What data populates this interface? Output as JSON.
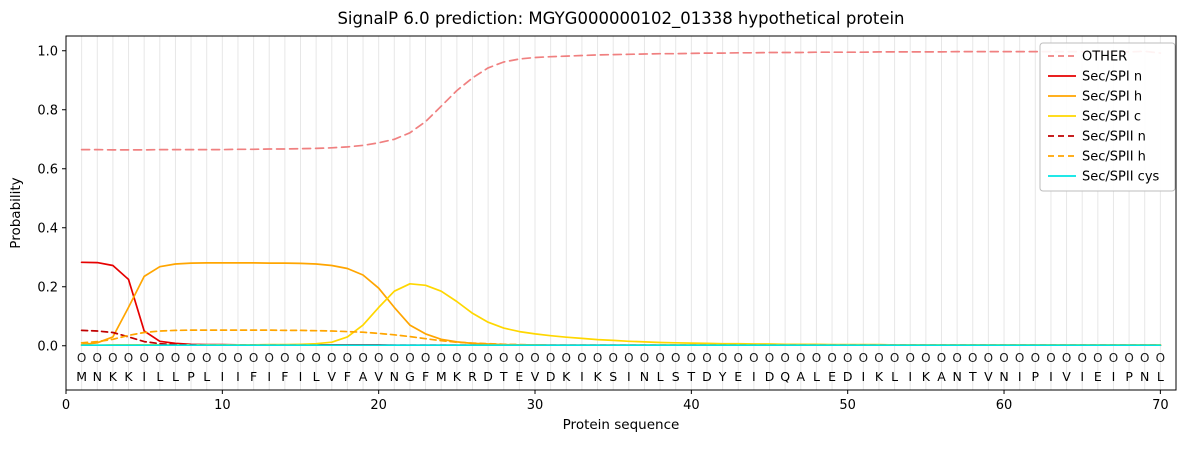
{
  "figure": {
    "title": "SignalP 6.0 prediction: MGYG000000102_01338 hypothetical protein"
  },
  "chart_data": {
    "type": "line",
    "title": "SignalP 6.0 prediction: MGYG000000102_01338 hypothetical protein",
    "xlabel": "Protein sequence",
    "ylabel": "Probability",
    "xlim": [
      0,
      71
    ],
    "ylim": [
      -0.15,
      1.05
    ],
    "xticks": [
      0,
      10,
      20,
      30,
      40,
      50,
      60,
      70
    ],
    "yticks": [
      0.0,
      0.2,
      0.4,
      0.6,
      0.8,
      1.0
    ],
    "grid": "vertical-per-residue",
    "legend_position": "upper-right",
    "sequence": "MNKKILLPLIIFIFILVFAVNGFMKRDTEVDKIKSINLSTDYEIDQALEDIKLIKANTVNIPIVIEIPNL",
    "predicted_labels": "OOOOOOOOOOOOOOOOOOOOOOOOOOOOOOOOOOOOOOOOOOOOOOOOOOOOOOOOOOOOOOOOOOOOOO",
    "series": [
      {
        "name": "OTHER",
        "color": "#f08080",
        "dash": "8 5",
        "values": [
          0.665,
          0.665,
          0.664,
          0.664,
          0.664,
          0.665,
          0.665,
          0.665,
          0.665,
          0.665,
          0.666,
          0.666,
          0.667,
          0.667,
          0.668,
          0.669,
          0.671,
          0.674,
          0.679,
          0.688,
          0.7,
          0.722,
          0.76,
          0.812,
          0.865,
          0.908,
          0.942,
          0.962,
          0.972,
          0.977,
          0.98,
          0.982,
          0.984,
          0.986,
          0.987,
          0.988,
          0.989,
          0.99,
          0.99,
          0.991,
          0.992,
          0.992,
          0.993,
          0.993,
          0.994,
          0.994,
          0.994,
          0.995,
          0.995,
          0.995,
          0.995,
          0.996,
          0.996,
          0.996,
          0.996,
          0.996,
          0.997,
          0.997,
          0.997,
          0.997,
          0.997,
          0.997,
          0.997,
          0.997,
          0.997,
          0.997,
          0.997,
          0.996,
          0.998,
          0.992
        ]
      },
      {
        "name": "Sec/SPI n",
        "color": "#e60000",
        "dash": "",
        "values": [
          0.283,
          0.282,
          0.272,
          0.225,
          0.05,
          0.015,
          0.008,
          0.005,
          0.004,
          0.004,
          0.003,
          0.003,
          0.003,
          0.003,
          0.003,
          0.003,
          0.003,
          0.003,
          0.003,
          0.003,
          0.002,
          0.002,
          0.002,
          0.002,
          0.002,
          0.002,
          0.002,
          0.002,
          0.002,
          0.002,
          0.002,
          0.002,
          0.002,
          0.002,
          0.002,
          0.002,
          0.002,
          0.002,
          0.002,
          0.002,
          0.002,
          0.002,
          0.002,
          0.002,
          0.002,
          0.002,
          0.002,
          0.002,
          0.002,
          0.002,
          0.002,
          0.002,
          0.002,
          0.002,
          0.002,
          0.002,
          0.002,
          0.002,
          0.002,
          0.002,
          0.002,
          0.002,
          0.002,
          0.002,
          0.002,
          0.002,
          0.002,
          0.002,
          0.002,
          0.002
        ]
      },
      {
        "name": "Sec/SPI h",
        "color": "#ffa500",
        "dash": "",
        "values": [
          0.004,
          0.01,
          0.03,
          0.13,
          0.235,
          0.268,
          0.277,
          0.28,
          0.281,
          0.281,
          0.281,
          0.281,
          0.28,
          0.28,
          0.279,
          0.277,
          0.272,
          0.262,
          0.24,
          0.195,
          0.13,
          0.07,
          0.04,
          0.022,
          0.013,
          0.008,
          0.006,
          0.004,
          0.003,
          0.003,
          0.002,
          0.002,
          0.002,
          0.002,
          0.002,
          0.002,
          0.002,
          0.002,
          0.002,
          0.002,
          0.002,
          0.002,
          0.002,
          0.002,
          0.002,
          0.002,
          0.002,
          0.002,
          0.002,
          0.002,
          0.002,
          0.002,
          0.002,
          0.002,
          0.002,
          0.002,
          0.002,
          0.002,
          0.002,
          0.002,
          0.002,
          0.002,
          0.002,
          0.002,
          0.002,
          0.002,
          0.002,
          0.002,
          0.002,
          0.002
        ]
      },
      {
        "name": "Sec/SPI c",
        "color": "#ffd700",
        "dash": "",
        "values": [
          0.002,
          0.002,
          0.003,
          0.003,
          0.003,
          0.003,
          0.003,
          0.003,
          0.003,
          0.003,
          0.003,
          0.003,
          0.004,
          0.004,
          0.005,
          0.007,
          0.012,
          0.03,
          0.07,
          0.13,
          0.185,
          0.21,
          0.205,
          0.185,
          0.15,
          0.11,
          0.08,
          0.06,
          0.048,
          0.04,
          0.034,
          0.029,
          0.025,
          0.021,
          0.018,
          0.015,
          0.013,
          0.011,
          0.01,
          0.009,
          0.008,
          0.007,
          0.007,
          0.006,
          0.006,
          0.005,
          0.005,
          0.005,
          0.004,
          0.004,
          0.004,
          0.004,
          0.003,
          0.003,
          0.003,
          0.003,
          0.003,
          0.003,
          0.003,
          0.003,
          0.003,
          0.003,
          0.003,
          0.003,
          0.003,
          0.003,
          0.003,
          0.003,
          0.003,
          0.003
        ]
      },
      {
        "name": "Sec/SPII n",
        "color": "#c00000",
        "dash": "6 4",
        "values": [
          0.052,
          0.05,
          0.045,
          0.03,
          0.014,
          0.007,
          0.004,
          0.003,
          0.002,
          0.002,
          0.002,
          0.002,
          0.002,
          0.002,
          0.002,
          0.002,
          0.002,
          0.002,
          0.002,
          0.002,
          0.002,
          0.002,
          0.002,
          0.002,
          0.002,
          0.002,
          0.002,
          0.002,
          0.002,
          0.002,
          0.002,
          0.002,
          0.002,
          0.002,
          0.002,
          0.002,
          0.002,
          0.002,
          0.002,
          0.002,
          0.002,
          0.002,
          0.002,
          0.002,
          0.002,
          0.002,
          0.002,
          0.002,
          0.002,
          0.002,
          0.002,
          0.002,
          0.002,
          0.002,
          0.002,
          0.002,
          0.002,
          0.002,
          0.002,
          0.002,
          0.002,
          0.002,
          0.002,
          0.002,
          0.002,
          0.002,
          0.002,
          0.002,
          0.002,
          0.002
        ]
      },
      {
        "name": "Sec/SPII h",
        "color": "#ffa500",
        "dash": "6 4",
        "values": [
          0.01,
          0.014,
          0.022,
          0.035,
          0.045,
          0.05,
          0.052,
          0.053,
          0.053,
          0.053,
          0.053,
          0.053,
          0.053,
          0.052,
          0.052,
          0.051,
          0.05,
          0.048,
          0.046,
          0.042,
          0.037,
          0.031,
          0.024,
          0.017,
          0.012,
          0.009,
          0.007,
          0.005,
          0.004,
          0.003,
          0.002,
          0.002,
          0.002,
          0.002,
          0.002,
          0.002,
          0.002,
          0.002,
          0.002,
          0.002,
          0.002,
          0.002,
          0.002,
          0.002,
          0.002,
          0.002,
          0.002,
          0.002,
          0.002,
          0.002,
          0.002,
          0.002,
          0.002,
          0.002,
          0.002,
          0.002,
          0.002,
          0.002,
          0.002,
          0.002,
          0.002,
          0.002,
          0.002,
          0.002,
          0.002,
          0.002,
          0.002,
          0.002,
          0.002,
          0.002
        ]
      },
      {
        "name": "Sec/SPII cys",
        "color": "#00e5e5",
        "dash": "",
        "values": [
          0.002,
          0.002,
          0.002,
          0.002,
          0.002,
          0.002,
          0.002,
          0.002,
          0.002,
          0.002,
          0.002,
          0.002,
          0.002,
          0.002,
          0.002,
          0.002,
          0.002,
          0.002,
          0.002,
          0.002,
          0.002,
          0.002,
          0.002,
          0.002,
          0.002,
          0.002,
          0.002,
          0.002,
          0.002,
          0.002,
          0.002,
          0.002,
          0.002,
          0.002,
          0.002,
          0.002,
          0.002,
          0.002,
          0.002,
          0.002,
          0.002,
          0.002,
          0.002,
          0.002,
          0.002,
          0.002,
          0.002,
          0.002,
          0.002,
          0.002,
          0.002,
          0.002,
          0.002,
          0.002,
          0.002,
          0.002,
          0.002,
          0.002,
          0.002,
          0.002,
          0.002,
          0.002,
          0.002,
          0.002,
          0.002,
          0.002,
          0.002,
          0.002,
          0.002,
          0.002
        ]
      }
    ]
  }
}
